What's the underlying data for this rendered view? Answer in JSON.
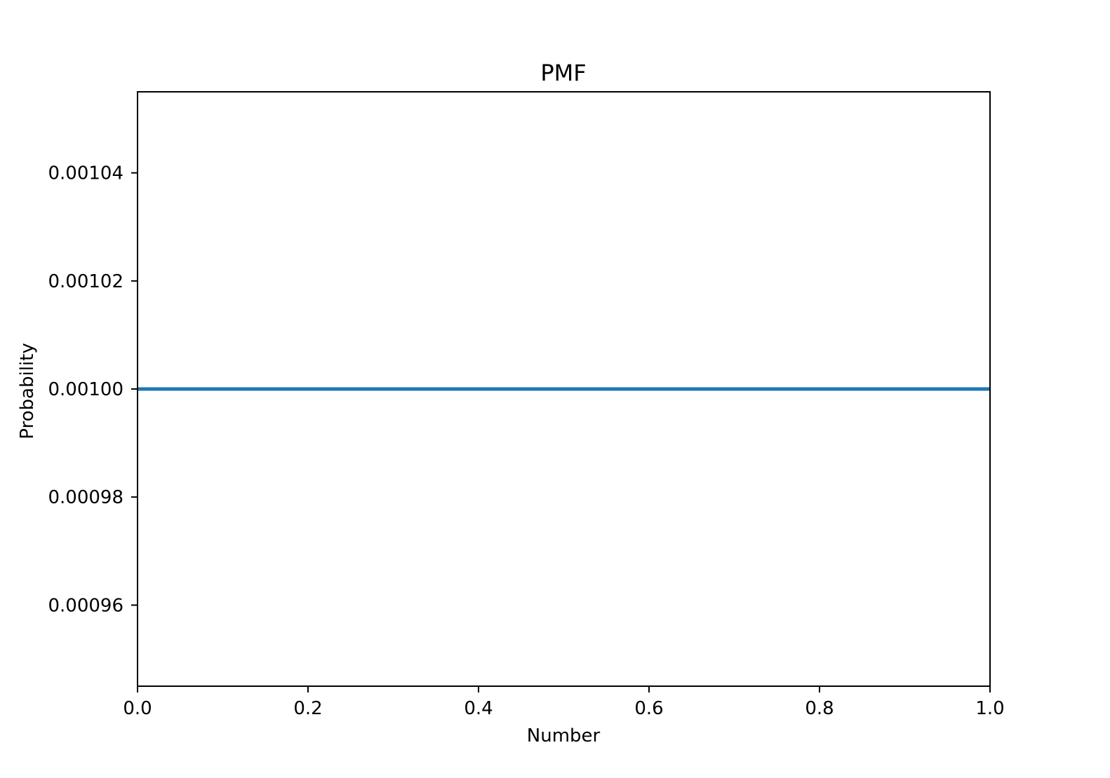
{
  "chart_data": {
    "type": "line",
    "title": "PMF",
    "xlabel": "Number",
    "ylabel": "Probability",
    "xlim": [
      0.0,
      1.0
    ],
    "ylim": [
      0.000945,
      0.001055
    ],
    "grid": false,
    "xticks": [
      0.0,
      0.2,
      0.4,
      0.6,
      0.8,
      1.0
    ],
    "xtick_labels": [
      "0.0",
      "0.2",
      "0.4",
      "0.6",
      "0.8",
      "1.0"
    ],
    "yticks": [
      0.00096,
      0.00098,
      0.001,
      0.00102,
      0.00104
    ],
    "ytick_labels": [
      "0.00096",
      "0.00098",
      "0.00100",
      "0.00102",
      "0.00104"
    ],
    "series": [
      {
        "x": [
          0.0,
          1.0
        ],
        "y": [
          0.001,
          0.001
        ],
        "color": "#1f77b4"
      }
    ]
  }
}
